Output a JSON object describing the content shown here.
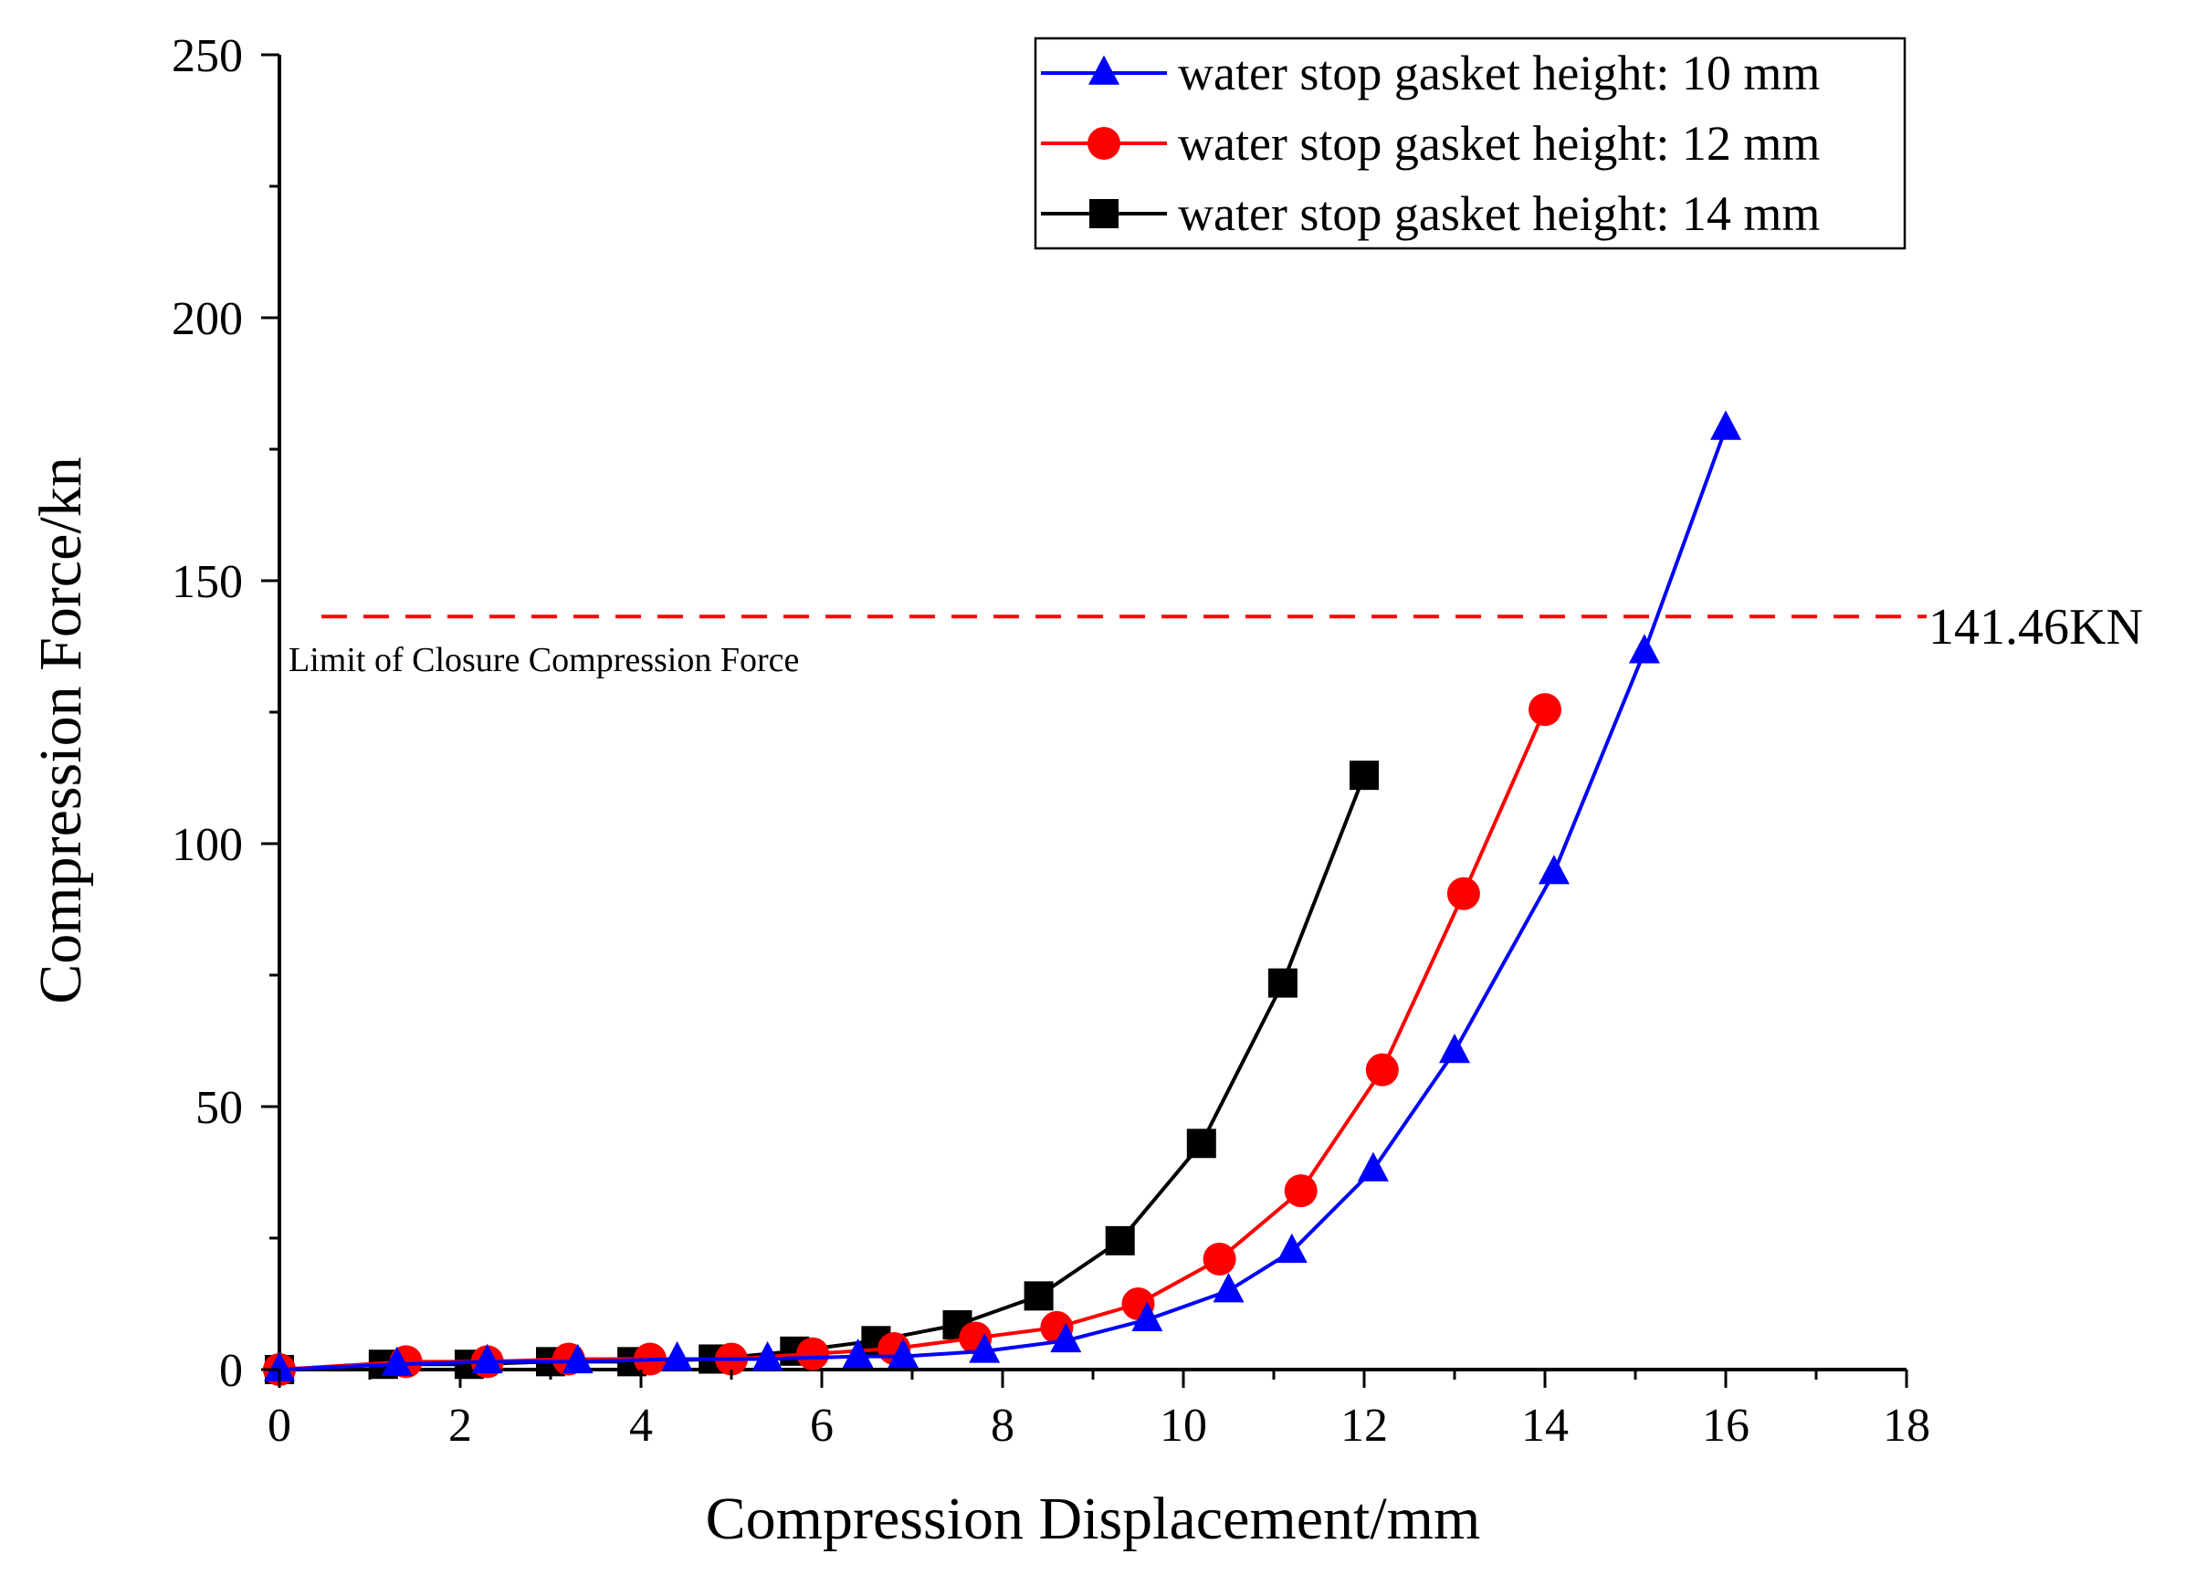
{
  "chart_data": {
    "type": "line",
    "title": "",
    "xlabel": "Compression Displacement/mm",
    "ylabel": "Compression Force/kn",
    "xlim": [
      0,
      18
    ],
    "ylim": [
      0,
      250
    ],
    "x_ticks": [
      0,
      2,
      4,
      6,
      8,
      10,
      12,
      14,
      16,
      18
    ],
    "y_ticks": [
      0,
      50,
      100,
      150,
      200,
      250
    ],
    "grid": false,
    "legend_position": "top-right",
    "series": [
      {
        "name": "water stop gasket height: 10 mm",
        "color": "#0000ff",
        "marker": "triangle",
        "x": [
          0,
          1.3,
          2.3,
          3.3,
          4.4,
          5.4,
          6.4,
          6.9,
          7.8,
          8.7,
          9.6,
          10.5,
          11.2,
          12.1,
          13.0,
          14.1,
          15.1,
          16.0
        ],
        "y": [
          0,
          1.0,
          1.5,
          1.5,
          2.0,
          2.0,
          2.5,
          2.5,
          3.5,
          5.5,
          9.5,
          15.0,
          22.5,
          38.0,
          60.5,
          94.5,
          136.5,
          179.0
        ]
      },
      {
        "name": "water stop gasket height: 12 mm",
        "color": "#ff0000",
        "marker": "circle",
        "x": [
          0,
          1.4,
          2.3,
          3.2,
          4.1,
          5.0,
          5.9,
          6.8,
          7.7,
          8.6,
          9.5,
          10.4,
          11.3,
          12.2,
          13.1,
          14.0
        ],
        "y": [
          0,
          1.5,
          1.5,
          2.0,
          2.0,
          2.0,
          3.0,
          4.0,
          6.0,
          8.0,
          12.5,
          21.0,
          34.0,
          57.0,
          90.5,
          125.5
        ]
      },
      {
        "name": "water stop gasket height: 14 mm",
        "color": "#000000",
        "marker": "square",
        "x": [
          0,
          1.15,
          2.1,
          3.0,
          3.9,
          4.8,
          5.7,
          6.6,
          7.5,
          8.4,
          9.3,
          10.2,
          11.1,
          12.0
        ],
        "y": [
          0,
          1.0,
          1.0,
          1.5,
          1.5,
          2.0,
          3.5,
          5.5,
          8.5,
          14.0,
          24.5,
          43.0,
          73.5,
          113.0
        ]
      }
    ],
    "reference_line": {
      "value": 141.46,
      "color": "#ff0000",
      "style": "dashed",
      "label": "Limit of Closure Compression Force",
      "value_label": "141.46KN"
    }
  }
}
